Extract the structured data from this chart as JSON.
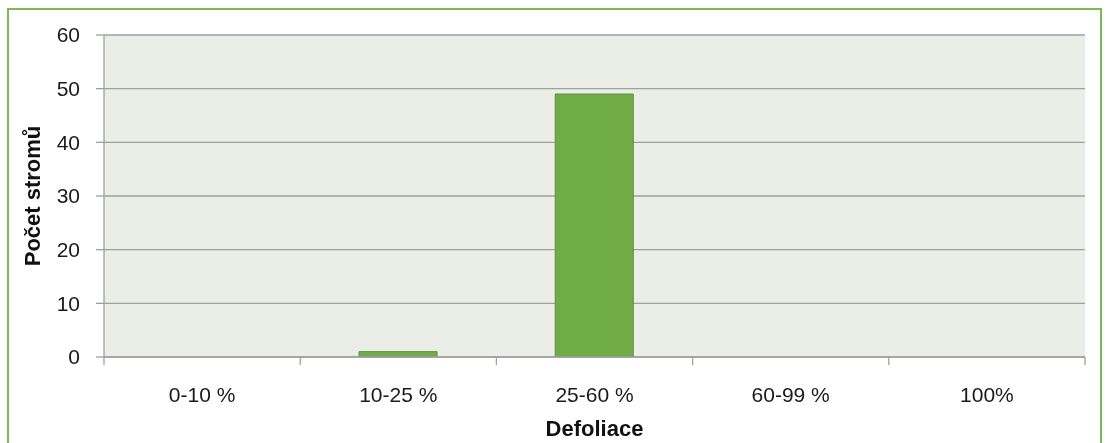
{
  "chart_data": {
    "type": "bar",
    "categories": [
      "0-10 %",
      "10-25 %",
      "25-60 %",
      "60-99 %",
      "100%"
    ],
    "values": [
      0,
      1,
      49,
      0,
      0
    ],
    "color": "#70ad47",
    "xlabel": "Defoliace",
    "ylabel": "Počet stromů",
    "ylim": [
      0,
      60
    ],
    "yticks": [
      0,
      10,
      20,
      30,
      40,
      50,
      60
    ],
    "grid": "y"
  }
}
